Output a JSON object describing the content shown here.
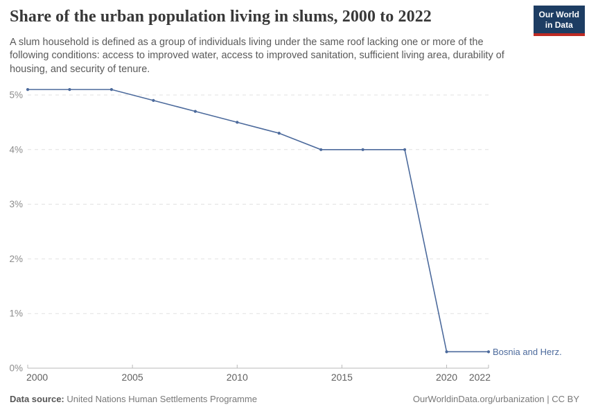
{
  "header": {
    "title": "Share of the urban population living in slums, 2000 to 2022",
    "subtitle": "A slum household is defined as a group of individuals living under the same roof lacking one or more of the following conditions: access to improved water, access to improved sanitation, sufficient living area, durability of housing, and security of tenure.",
    "logo": {
      "line1": "Our World",
      "line2": "in Data"
    }
  },
  "chart_data": {
    "type": "line",
    "title": "Share of the urban population living in slums, 2000 to 2022",
    "x": [
      2000,
      2002,
      2004,
      2006,
      2008,
      2010,
      2012,
      2014,
      2016,
      2018,
      2020,
      2022
    ],
    "series": [
      {
        "name": "Bosnia and Herz.",
        "color": "#4C6A9C",
        "values": [
          5.1,
          5.1,
          5.1,
          4.9,
          4.7,
          4.5,
          4.3,
          4.0,
          4.0,
          4.0,
          0.3,
          0.3
        ]
      }
    ],
    "x_ticks": [
      2000,
      2005,
      2010,
      2015,
      2020,
      2022
    ],
    "y_ticks": [
      0,
      1,
      2,
      3,
      4,
      5
    ],
    "y_tick_suffix": "%",
    "xlim": [
      2000,
      2022
    ],
    "ylim": [
      0,
      5.35
    ],
    "xlabel": "",
    "ylabel": "",
    "grid": "horizontal-dashed",
    "legend": "series-end-label"
  },
  "footer": {
    "source_label": "Data source:",
    "source_value": "United Nations Human Settlements Programme",
    "credit": "OurWorldinData.org/urbanization | CC BY"
  },
  "colors": {
    "series_line": "#4C6A9C",
    "logo_background": "#1D3D63",
    "logo_accent": "#BE2A23",
    "gridline": "#E1E1E1",
    "axis": "#B9B9B9",
    "title_text": "#383838",
    "subtitle_text": "#595959"
  }
}
